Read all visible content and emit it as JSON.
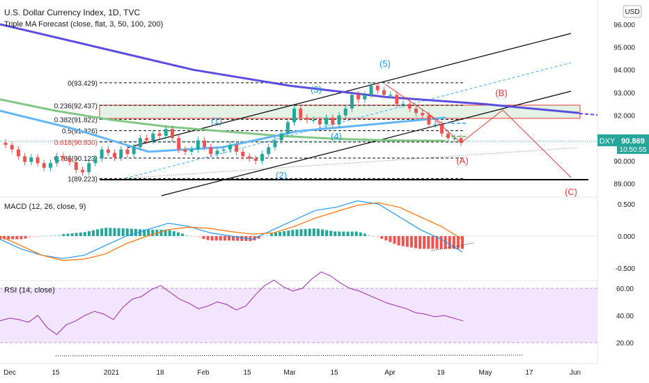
{
  "header": {
    "title": "U.S. Dollar Currency Index, 1D, TVC",
    "indicator": "Triple MA Forecast (close, flat, 3, 50, 100, 200)",
    "currency_button": "USD"
  },
  "colors": {
    "up": "#26a69a",
    "down": "#ef5350",
    "ma50": "#64b5f6",
    "ma100": "#81c784",
    "ma200": "#5b4de0",
    "fib_zone": "#c8e6c9",
    "rsi_band": "#f3e5ff",
    "rsi_line": "#9c27b0",
    "macd_line": "#2196f3",
    "signal_line": "#ff6d00",
    "trend": "#000000",
    "wave_label": "#2196f3",
    "corrective_label": "#e53935"
  },
  "price_panel": {
    "symbol_tag": "DXY",
    "last_price": "90.869",
    "countdown": "10:50:55",
    "axis_labels": [
      "96.000",
      "95.000",
      "94.000",
      "93.000",
      "92.000",
      "90.000",
      "89.000"
    ],
    "fib_levels": [
      {
        "label": "0(93.429)",
        "value": 93.429
      },
      {
        "label": "0.236(92.437)",
        "value": 92.437
      },
      {
        "label": "0.382(91.822)",
        "value": 91.822
      },
      {
        "label": "0.5(91.326)",
        "value": 91.326
      },
      {
        "label": "0.618(90.830)",
        "value": 90.83
      },
      {
        "label": "0.786(90.123)",
        "value": 90.123
      },
      {
        "label": "1(89.223)",
        "value": 89.223
      }
    ],
    "wave_labels": [
      "(1)",
      "(2)",
      "(3)",
      "(4)",
      "(5)"
    ],
    "corrective_labels": [
      "(A)",
      "(B)",
      "(C)"
    ]
  },
  "macd_panel": {
    "title": "MACD (12, 26, close, 9)",
    "axis_labels": [
      "0.500",
      "0.000",
      "-0.500"
    ]
  },
  "rsi_panel": {
    "title": "RSI (14, close)",
    "axis_labels": [
      "60.00",
      "40.00",
      "20.00"
    ]
  },
  "time_axis": [
    "Dec",
    "15",
    "2021",
    "18",
    "Feb",
    "15",
    "Mar",
    "15",
    "Apr",
    "19",
    "May",
    "17",
    "Jun"
  ],
  "chart_data": [
    {
      "type": "candlestick",
      "title": "U.S. Dollar Currency Index, 1D, TVC",
      "ylim": [
        88.7,
        96.3
      ],
      "series": [
        {
          "name": "close",
          "values": [
            90.7,
            90.5,
            90.2,
            89.95,
            90.15,
            89.9,
            89.7,
            89.9,
            90.2,
            90.1,
            89.95,
            89.6,
            89.5,
            89.9,
            90.1,
            90.5,
            90.35,
            90.15,
            90.5,
            90.3,
            90.6,
            91.0,
            90.9,
            91.2,
            91.1,
            91.4,
            91.0,
            90.5,
            90.4,
            90.5,
            90.9,
            90.6,
            90.3,
            90.45,
            90.5,
            90.7,
            90.4,
            90.2,
            90.1,
            90.0,
            90.3,
            90.6,
            90.9,
            91.2,
            91.7,
            92.3,
            91.9,
            91.8,
            91.8,
            91.6,
            91.9,
            91.6,
            92.0,
            92.3,
            92.9,
            92.7,
            92.9,
            93.3,
            93.1,
            92.9,
            92.9,
            92.5,
            92.5,
            92.3,
            92.1,
            92.0,
            91.6,
            91.6,
            91.2,
            91.0,
            91.0,
            90.8
          ]
        },
        {
          "name": "MA 50",
          "values": [
            92.2,
            91.4,
            90.4,
            90.6,
            91.3,
            91.6,
            91.9
          ]
        },
        {
          "name": "MA 100",
          "values": [
            92.7,
            92.2,
            91.8,
            91.5,
            91.3,
            91.1,
            90.97,
            90.9,
            90.88
          ]
        },
        {
          "name": "MA 200",
          "values": [
            96.0,
            95.0,
            94.0,
            93.3,
            92.8,
            92.5,
            92.1
          ]
        }
      ]
    },
    {
      "type": "bar",
      "title": "MACD (12, 26, close, 9)",
      "ylim": [
        -0.6,
        0.6
      ],
      "series": [
        {
          "name": "MACD",
          "values": [
            -0.05,
            -0.2,
            -0.3,
            -0.35,
            -0.3,
            -0.15,
            0.0,
            0.1,
            0.2,
            0.15,
            0.05,
            0.0,
            -0.05,
            0.1,
            0.25,
            0.4,
            0.45,
            0.55,
            0.5,
            0.3,
            0.1,
            -0.05,
            -0.25
          ]
        },
        {
          "name": "Signal",
          "values": [
            0.0,
            -0.15,
            -0.3,
            -0.38,
            -0.36,
            -0.28,
            -0.12,
            0.0,
            0.1,
            0.14,
            0.12,
            0.07,
            0.03,
            0.05,
            0.15,
            0.28,
            0.38,
            0.48,
            0.52,
            0.45,
            0.3,
            0.15,
            -0.05
          ]
        }
      ]
    },
    {
      "type": "line",
      "title": "RSI (14, close)",
      "ylim": [
        20,
        72
      ],
      "series": [
        {
          "name": "RSI",
          "values": [
            36,
            38,
            37,
            35,
            40,
            31,
            26,
            33,
            36,
            40,
            43,
            41,
            37,
            46,
            52,
            54,
            59,
            62,
            57,
            52,
            49,
            45,
            47,
            50,
            48,
            44,
            47,
            55,
            62,
            66,
            61,
            58,
            60,
            67,
            72,
            69,
            64,
            60,
            58,
            55,
            52,
            49,
            47,
            45,
            42,
            41,
            39,
            40,
            38,
            36
          ]
        }
      ]
    }
  ]
}
